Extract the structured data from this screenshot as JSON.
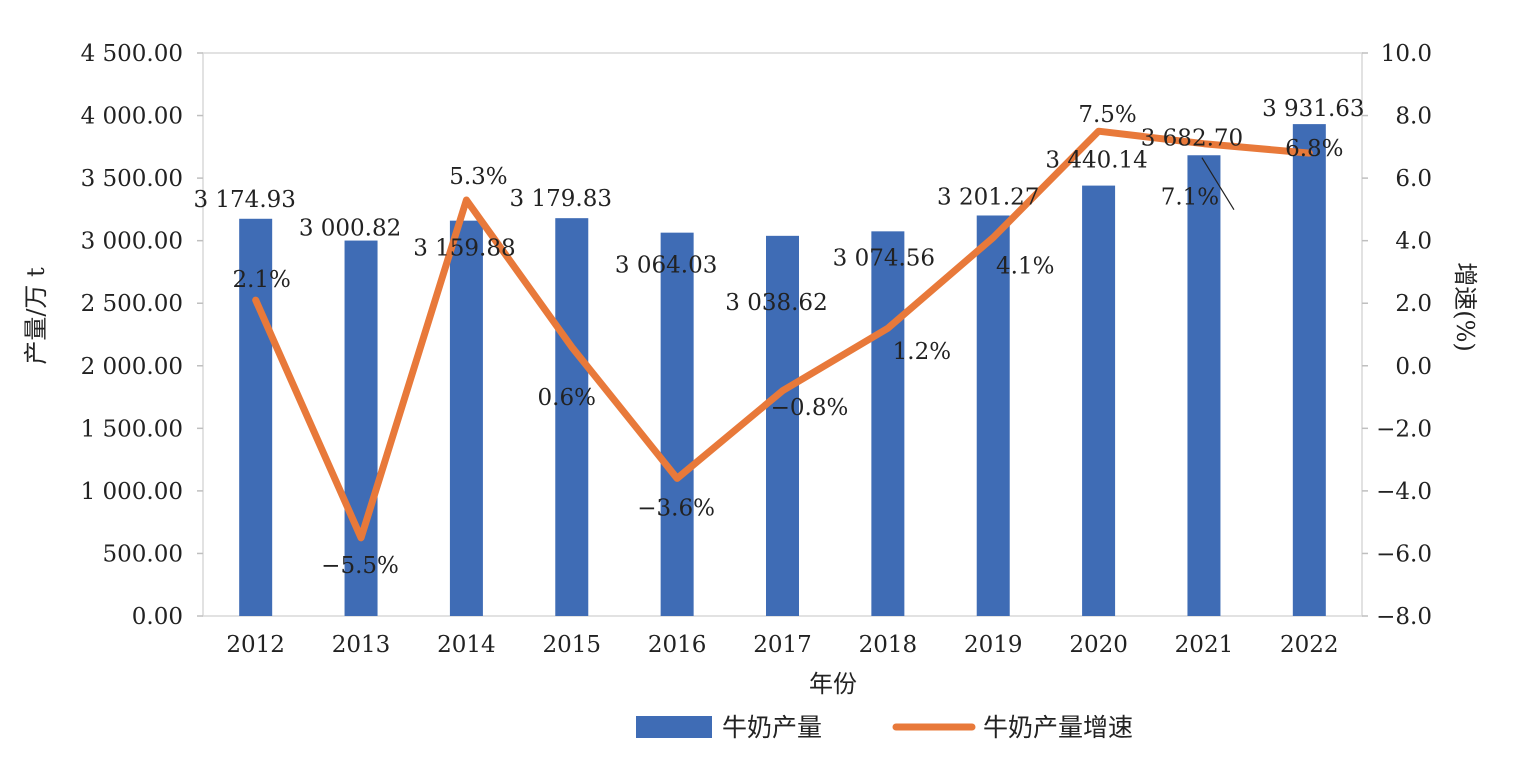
{
  "chart_data": {
    "type": "bar",
    "categories": [
      "2012",
      "2013",
      "2014",
      "2015",
      "2016",
      "2017",
      "2018",
      "2019",
      "2020",
      "2021",
      "2022"
    ],
    "series": [
      {
        "name": "牛奶产量",
        "type": "bar",
        "axis": "left",
        "color": "#3f6cb5",
        "values": [
          3174.93,
          3000.82,
          3159.88,
          3179.83,
          3064.03,
          3038.62,
          3074.56,
          3201.27,
          3440.14,
          3682.7,
          3931.63
        ],
        "labels": [
          "3 174.93",
          "3 000.82",
          "3 159.88",
          "3 179.83",
          "3 064.03",
          "3 038.62",
          "3 074.56",
          "3 201.27",
          "3 440.14",
          "3 682.70",
          "3 931.63"
        ]
      },
      {
        "name": "牛奶产量增速",
        "type": "line",
        "axis": "right",
        "color": "#e8793a",
        "values": [
          2.1,
          -5.5,
          5.3,
          0.6,
          -3.6,
          -0.8,
          1.2,
          4.1,
          7.5,
          7.1,
          6.8
        ],
        "labels": [
          "2.1%",
          "−5.5%",
          "5.3%",
          "0.6%",
          "−3.6%",
          "−0.8%",
          "1.2%",
          "4.1%",
          "7.5%",
          "7.1%",
          "6.8%"
        ]
      }
    ],
    "xlabel": "年份",
    "ylabel": "产量/万 t",
    "y2label": "增速(%)",
    "ylim": [
      0,
      4500
    ],
    "y2lim": [
      -8,
      10
    ],
    "yticks": [
      "0.00",
      "500.00",
      "1 000.00",
      "1 500.00",
      "2 000.00",
      "2 500.00",
      "3 000.00",
      "3 500.00",
      "4 000.00",
      "4 500.00"
    ],
    "y2ticks": [
      "−8.0",
      "−6.0",
      "−4.0",
      "−2.0",
      "0.0",
      "2.0",
      "4.0",
      "6.0",
      "8.0",
      "10.0"
    ],
    "grid": false,
    "legend_position": "bottom"
  }
}
